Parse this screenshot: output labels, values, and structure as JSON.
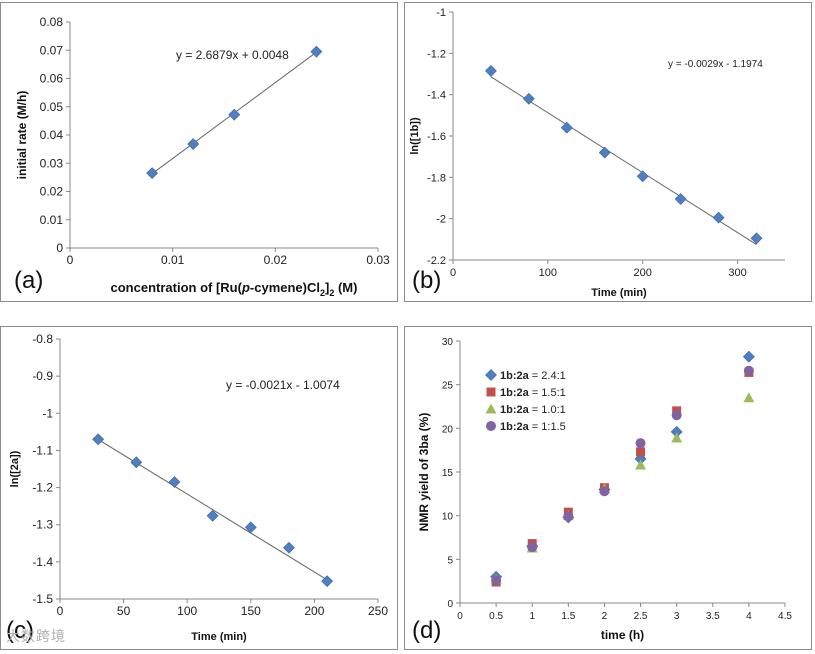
{
  "watermark": "大数跨境",
  "colors": {
    "blue": "#4f7fc0",
    "red": "#c0504d",
    "green": "#9bbb59",
    "purple": "#8064a2",
    "line": "#666666"
  },
  "chart_data": [
    {
      "id": "a",
      "panel_label": "(a)",
      "type": "scatter",
      "title": "",
      "xlabel": "concentration of [Ru(p-cymene)Cl2]2 (M)",
      "xlabel_parts": {
        "pre": "concentration of [Ru(",
        "italic": "p",
        "mid": "-cymene)Cl",
        "sub1": "2",
        "mid2": "]",
        "sub2": "2",
        "post": " (M)"
      },
      "ylabel": "initial rate (M/h)",
      "xlim": [
        0,
        0.03
      ],
      "ylim": [
        0,
        0.08
      ],
      "xticks": [
        0,
        0.01,
        0.02,
        0.03
      ],
      "xtick_labels": [
        "0",
        "0.01",
        "0.02",
        "0.03"
      ],
      "yticks": [
        0,
        0.01,
        0.02,
        0.03,
        0.04,
        0.05,
        0.06,
        0.07,
        0.08
      ],
      "ytick_labels": [
        "0",
        "0.01",
        "0.02",
        "0.03",
        "0.04",
        "0.05",
        "0.06",
        "0.07",
        "0.08"
      ],
      "series": [
        {
          "name": "data",
          "marker": "diamond",
          "color": "#4f7fc0",
          "x": [
            0.008,
            0.012,
            0.016,
            0.024
          ],
          "y": [
            0.0265,
            0.0368,
            0.0472,
            0.0695
          ]
        }
      ],
      "trendline": {
        "slope": 2.6879,
        "intercept": 0.0048,
        "x_range": [
          0.008,
          0.024
        ]
      },
      "equation": "y = 2.6879x + 0.0048"
    },
    {
      "id": "b",
      "panel_label": "(b)",
      "type": "scatter",
      "title": "",
      "xlabel": "Time (min)",
      "ylabel": "ln([1b])",
      "xlim": [
        0,
        350
      ],
      "ylim": [
        -2.2,
        -1.0
      ],
      "xticks": [
        0,
        100,
        200,
        300
      ],
      "xtick_labels": [
        "0",
        "100",
        "200",
        "300"
      ],
      "yticks": [
        -2.2,
        -2.0,
        -1.8,
        -1.6,
        -1.4,
        -1.2,
        -1.0
      ],
      "ytick_labels": [
        "-2.2",
        "-2",
        "-1.8",
        "-1.6",
        "-1.4",
        "-1.2",
        "-1"
      ],
      "series": [
        {
          "name": "data",
          "marker": "diamond",
          "color": "#4f7fc0",
          "x": [
            40,
            80,
            120,
            160,
            200,
            240,
            280,
            320
          ],
          "y": [
            -1.285,
            -1.42,
            -1.56,
            -1.68,
            -1.795,
            -1.905,
            -1.995,
            -2.095
          ]
        }
      ],
      "trendline": {
        "slope": -0.0029,
        "intercept": -1.1974,
        "x_range": [
          40,
          320
        ]
      },
      "equation": "y = -0.0029x - 1.1974"
    },
    {
      "id": "c",
      "panel_label": "(c)",
      "type": "scatter",
      "title": "",
      "xlabel": "Time (min)",
      "ylabel": "ln([2a])",
      "xlim": [
        0,
        250
      ],
      "ylim": [
        -1.5,
        -0.8
      ],
      "xticks": [
        0,
        50,
        100,
        150,
        200,
        250
      ],
      "xtick_labels": [
        "0",
        "50",
        "100",
        "150",
        "200",
        "250"
      ],
      "yticks": [
        -1.5,
        -1.4,
        -1.3,
        -1.2,
        -1.1,
        -1.0,
        -0.9,
        -0.8
      ],
      "ytick_labels": [
        "-1.5",
        "-1.4",
        "-1.3",
        "-1.2",
        "-1.1",
        "-1",
        "-0.9",
        "-0.8"
      ],
      "series": [
        {
          "name": "data",
          "marker": "diamond",
          "color": "#4f7fc0",
          "x": [
            30,
            60,
            90,
            120,
            150,
            180,
            210
          ],
          "y": [
            -1.07,
            -1.132,
            -1.185,
            -1.276,
            -1.307,
            -1.362,
            -1.452
          ]
        }
      ],
      "trendline": {
        "slope": -0.0021,
        "intercept": -1.0074,
        "x_range": [
          30,
          210
        ]
      },
      "equation": "y = -0.0021x - 1.0074"
    },
    {
      "id": "d",
      "panel_label": "(d)",
      "type": "scatter",
      "title": "",
      "xlabel": "time (h)",
      "ylabel": "NMR yield of 3ba (%)",
      "xlim": [
        0,
        4.5
      ],
      "ylim": [
        0,
        30
      ],
      "xticks": [
        0,
        0.5,
        1,
        1.5,
        2,
        2.5,
        3,
        3.5,
        4,
        4.5
      ],
      "xtick_labels": [
        "0",
        "0.5",
        "1",
        "1.5",
        "2",
        "2.5",
        "3",
        "3.5",
        "4",
        "4.5"
      ],
      "yticks": [
        0,
        5,
        10,
        15,
        20,
        25,
        30
      ],
      "ytick_labels": [
        "0",
        "5",
        "10",
        "15",
        "20",
        "25",
        "30"
      ],
      "legend_position": "top-left",
      "series": [
        {
          "name": "1b:2a = 2.4:1",
          "name_bold": "1b:2a",
          "name_rest": " = 2.4:1",
          "marker": "diamond",
          "color": "#4f7fc0",
          "x": [
            0.5,
            1,
            1.5,
            2,
            2.5,
            3,
            4
          ],
          "y": [
            3.0,
            6.5,
            9.8,
            13.0,
            16.5,
            19.6,
            28.2
          ]
        },
        {
          "name": "1b:2a = 1.5:1",
          "name_bold": "1b:2a",
          "name_rest": " = 1.5:1",
          "marker": "square",
          "color": "#c0504d",
          "x": [
            0.5,
            1,
            1.5,
            2,
            2.5,
            3,
            4
          ],
          "y": [
            2.4,
            6.8,
            10.4,
            13.2,
            17.3,
            22.0,
            26.4
          ]
        },
        {
          "name": "1b:2a = 1.0:1",
          "name_bold": "1b:2a",
          "name_rest": " = 1.0:1",
          "marker": "triangle",
          "color": "#9bbb59",
          "x": [
            0.5,
            1,
            1.5,
            2,
            2.5,
            3,
            4
          ],
          "y": [
            2.7,
            6.3,
            10.0,
            13.1,
            15.8,
            18.9,
            23.5
          ]
        },
        {
          "name": "1b:2a = 1:1.5",
          "name_bold": "1b:2a",
          "name_rest": " = 1:1.5",
          "marker": "circle",
          "color": "#8064a2",
          "x": [
            0.5,
            1,
            1.5,
            2,
            2.5,
            3,
            4
          ],
          "y": [
            2.6,
            6.4,
            9.9,
            12.8,
            18.3,
            21.5,
            26.6
          ]
        }
      ]
    }
  ]
}
